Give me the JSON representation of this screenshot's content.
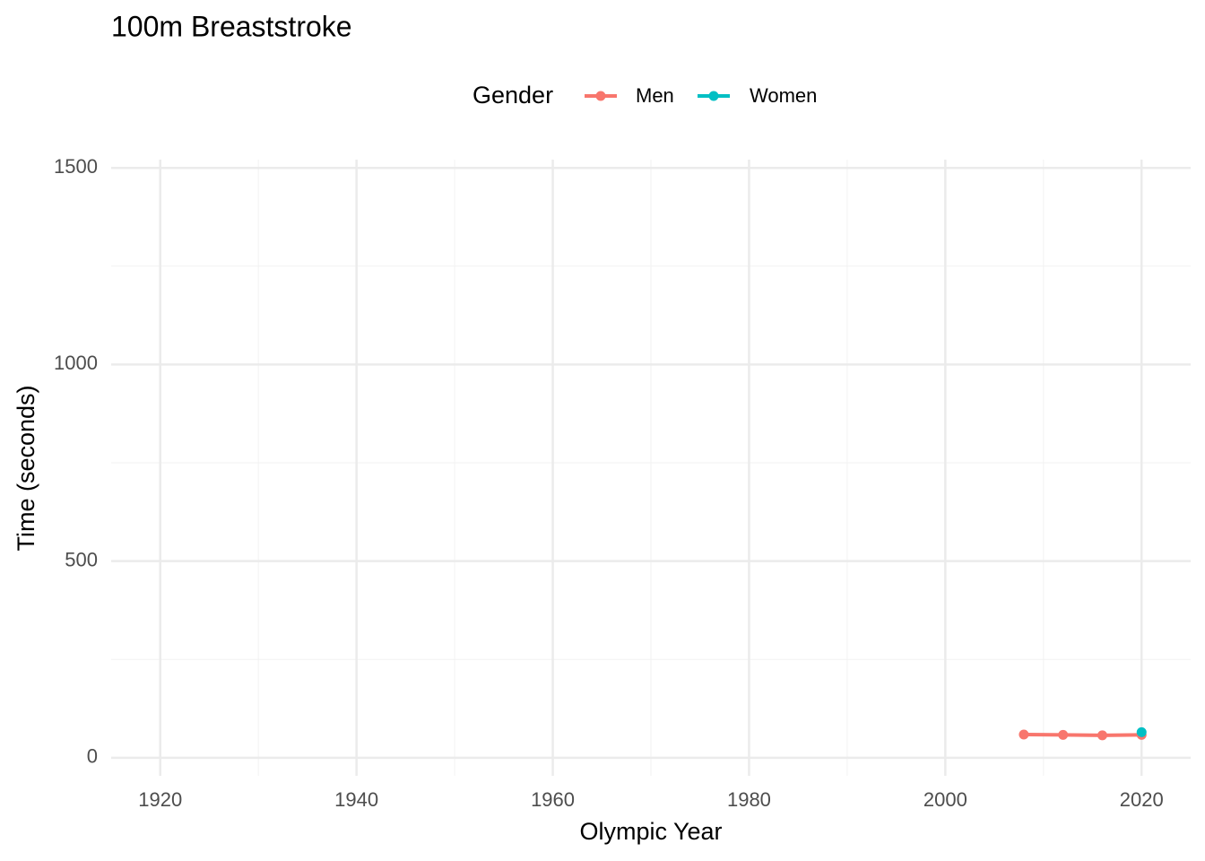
{
  "chart_data": {
    "type": "line",
    "title": "100m Breaststroke",
    "x_label": "Olympic Year",
    "y_label": "Time (seconds)",
    "legend_title": "Gender",
    "legend_position": "top",
    "series": [
      {
        "name": "Men",
        "color": "#F8766D",
        "x": [
          2008,
          2012,
          2016,
          2020
        ],
        "values": [
          59,
          58,
          57,
          58
        ]
      },
      {
        "name": "Women",
        "color": "#00BFC4",
        "x": [
          2020
        ],
        "values": [
          65
        ]
      }
    ],
    "xlim": [
      1915,
      2025
    ],
    "xticks": [
      1920,
      1940,
      1960,
      1980,
      2000,
      2020
    ],
    "xminor": [
      1930,
      1950,
      1970,
      1990,
      2010
    ],
    "ylim": [
      -46,
      1521
    ],
    "yticks": [
      0,
      500,
      1000,
      1500
    ],
    "yminor": [
      250,
      750,
      1250
    ],
    "grid": true
  }
}
